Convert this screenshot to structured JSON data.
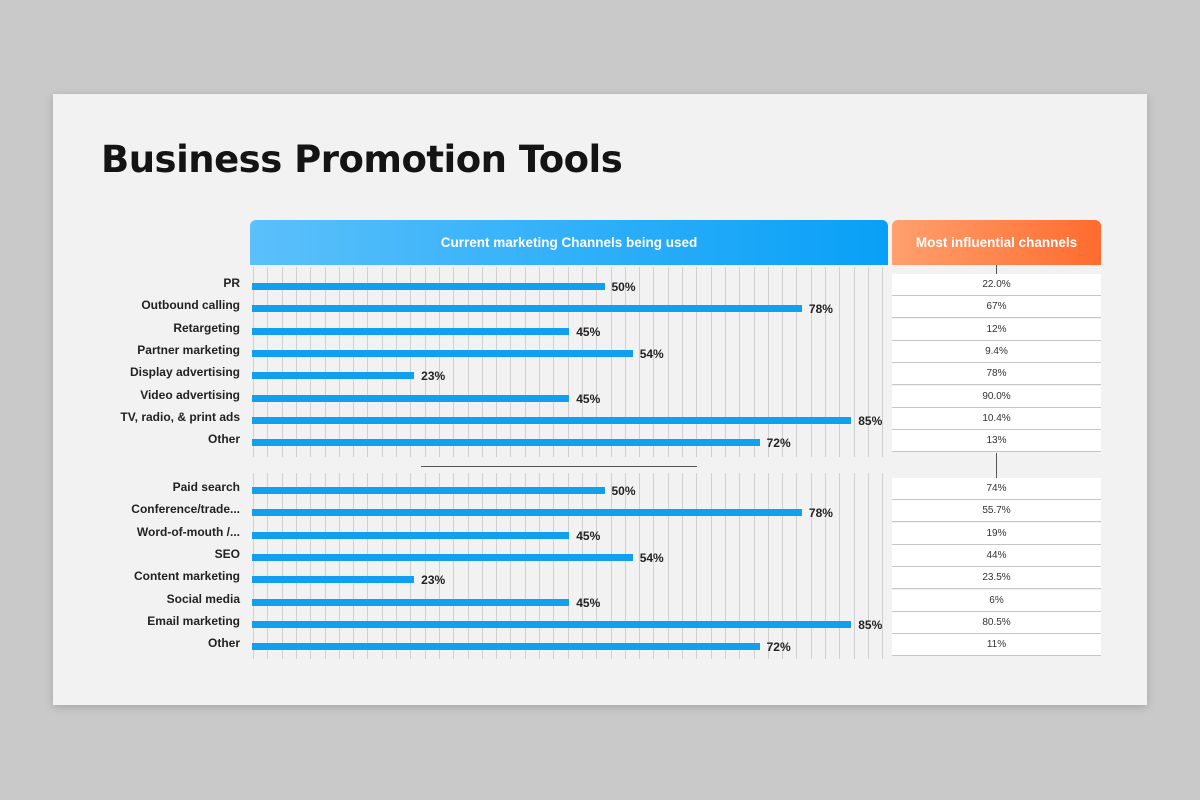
{
  "title": "Business Promotion Tools",
  "headers": {
    "current": "Current marketing Channels being used",
    "influential": "Most influential channels"
  },
  "colors": {
    "bar": "#119ff0",
    "header_blue": "#08a0f7",
    "header_orange": "#ff6b2e"
  },
  "chart_data": {
    "type": "bar",
    "orientation": "horizontal",
    "groups": [
      {
        "categories": [
          "PR",
          "Outbound calling",
          "Retargeting",
          "Partner marketing",
          "Display advertising",
          "Video advertising",
          "TV, radio, & print ads",
          "Other"
        ],
        "values": [
          50,
          78,
          45,
          54,
          23,
          45,
          85,
          72
        ],
        "value_labels": [
          "50%",
          "78%",
          "45%",
          "54%",
          "23%",
          "45%",
          "85%",
          "72%"
        ],
        "influential": [
          "22.0%",
          "67%",
          "12%",
          "9.4%",
          "78%",
          "90.0%",
          "10.4%",
          "13%"
        ]
      },
      {
        "categories": [
          "Paid search",
          "Conference/trade...",
          "Word-of-mouth /...",
          "SEO",
          "Content marketing",
          "Social media",
          "Email marketing",
          "Other"
        ],
        "values": [
          50,
          78,
          45,
          54,
          23,
          45,
          85,
          72
        ],
        "value_labels": [
          "50%",
          "78%",
          "45%",
          "54%",
          "23%",
          "45%",
          "85%",
          "72%"
        ],
        "influential": [
          "74%",
          "55.7%",
          "19%",
          "44%",
          "23.5%",
          "6%",
          "80.5%",
          "11%"
        ]
      }
    ],
    "xlim": [
      0,
      90
    ],
    "grid": true
  }
}
